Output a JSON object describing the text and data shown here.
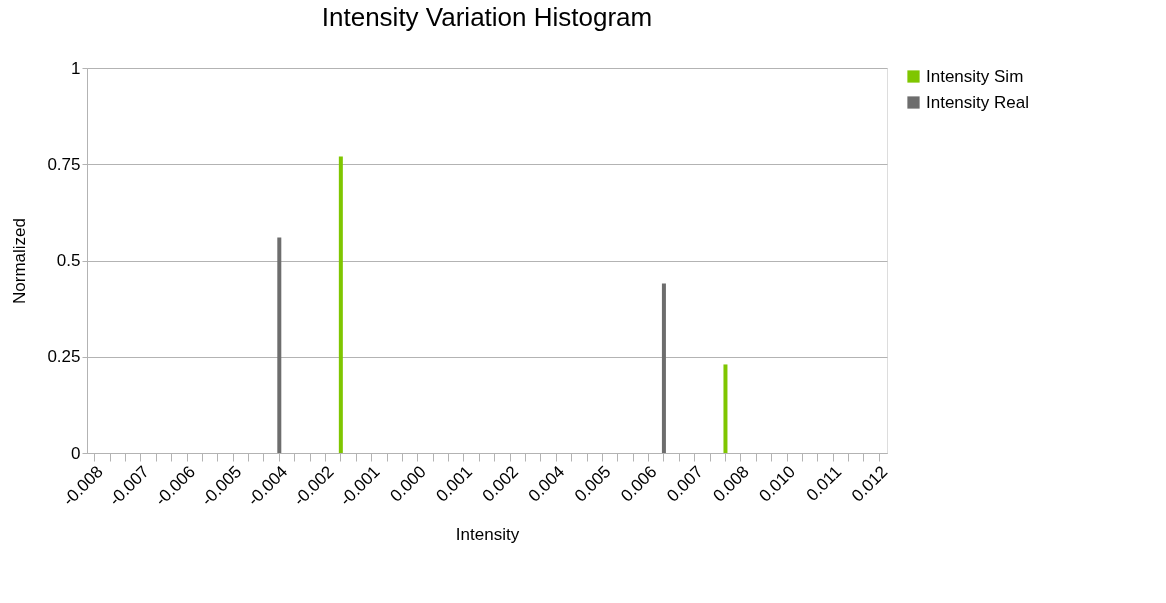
{
  "chart_data": {
    "type": "bar",
    "title": "Intensity Variation Histogram",
    "xlabel": "Intensity",
    "ylabel": "Normalized",
    "categories": [
      "-0.008",
      null,
      null,
      "-0.007",
      null,
      null,
      "-0.006",
      null,
      null,
      "-0.005",
      null,
      null,
      "-0.004",
      null,
      null,
      "-0.002",
      null,
      null,
      "-0.001",
      null,
      null,
      "0.000",
      null,
      null,
      "0.001",
      null,
      null,
      "0.002",
      null,
      null,
      "0.004",
      null,
      null,
      "0.005",
      null,
      null,
      "0.006",
      null,
      null,
      "0.007",
      null,
      null,
      "0.008",
      null,
      null,
      "0.010",
      null,
      null,
      "0.011",
      null,
      null,
      "0.012"
    ],
    "series": [
      {
        "name": "Intensity Sim",
        "color": "#7fc600",
        "values": [
          0,
          0,
          0,
          0,
          0,
          0,
          0,
          0,
          0,
          0,
          0,
          0,
          0,
          0,
          0,
          0,
          0.77,
          0,
          0,
          0,
          0,
          0,
          0,
          0,
          0,
          0,
          0,
          0,
          0,
          0,
          0,
          0,
          0,
          0,
          0,
          0,
          0,
          0,
          0,
          0,
          0,
          0.23,
          0,
          0,
          0,
          0,
          0,
          0,
          0,
          0,
          0,
          0
        ]
      },
      {
        "name": "Intensity Real",
        "color": "#6d6d6d",
        "values": [
          0,
          0,
          0,
          0,
          0,
          0,
          0,
          0,
          0,
          0,
          0,
          0,
          0.56,
          0,
          0,
          0,
          0,
          0,
          0,
          0,
          0,
          0,
          0,
          0,
          0,
          0,
          0,
          0,
          0,
          0,
          0,
          0,
          0,
          0,
          0,
          0,
          0,
          0.44,
          0,
          0,
          0,
          0,
          0,
          0,
          0,
          0,
          0,
          0,
          0,
          0,
          0,
          0
        ]
      }
    ],
    "ylim": [
      0,
      1
    ],
    "yticks": [
      0,
      0.25,
      0.5,
      0.75,
      1
    ],
    "grid": "y",
    "legend": "right"
  }
}
